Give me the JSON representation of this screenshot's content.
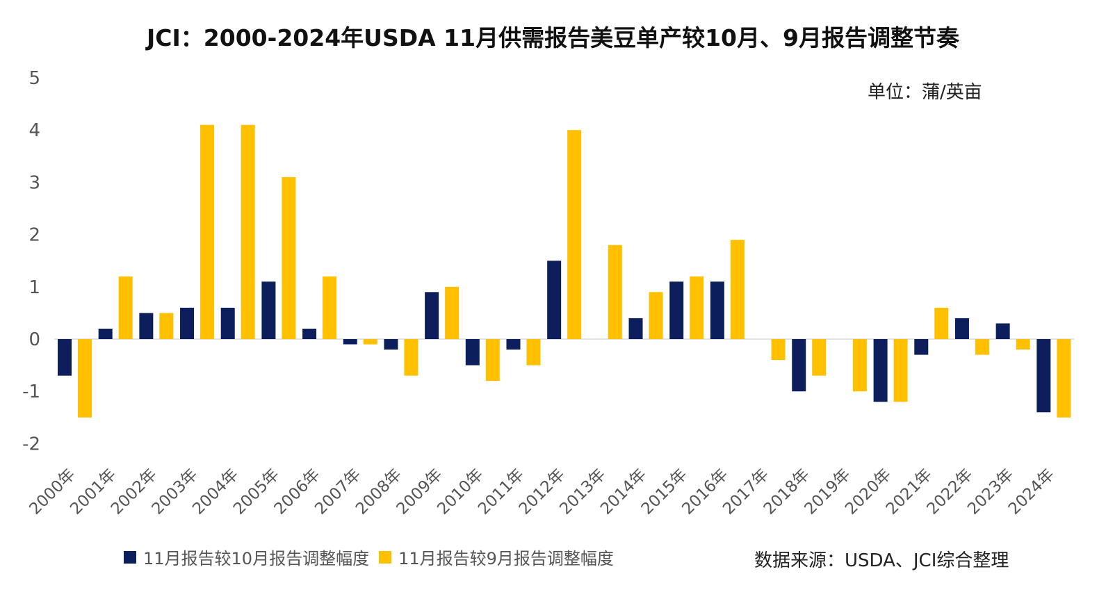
{
  "chart_data": {
    "type": "bar",
    "title": "JCI：2000-2024年USDA 11月供需报告美豆单产较10月、9月报告调整节奏",
    "unit": "单位：蒲/英亩",
    "source": "数据来源：USDA、JCI综合整理",
    "categories": [
      "2000年",
      "2001年",
      "2002年",
      "2003年",
      "2004年",
      "2005年",
      "2006年",
      "2007年",
      "2008年",
      "2009年",
      "2010年",
      "2011年",
      "2012年",
      "2013年",
      "2014年",
      "2015年",
      "2016年",
      "2017年",
      "2018年",
      "2019年",
      "2020年",
      "2021年",
      "2022年",
      "2023年",
      "2024年"
    ],
    "series": [
      {
        "name": "11月报告较10月报告调整幅度",
        "color": "#0c1f5c",
        "values": [
          -0.7,
          0.2,
          0.5,
          0.6,
          0.6,
          1.1,
          0.2,
          -0.1,
          -0.2,
          0.9,
          -0.5,
          -0.2,
          1.5,
          0,
          0.4,
          1.1,
          1.1,
          0,
          -1.0,
          0,
          -1.2,
          -0.3,
          0.4,
          0.3,
          -1.4
        ]
      },
      {
        "name": "11月报告较9月报告调整幅度",
        "color": "#ffc000",
        "values": [
          -1.5,
          1.2,
          0.5,
          4.1,
          4.1,
          3.1,
          1.2,
          -0.1,
          -0.7,
          1.0,
          -0.8,
          -0.5,
          4.0,
          1.8,
          0.9,
          1.2,
          1.9,
          -0.4,
          -0.7,
          -1.0,
          -1.2,
          0.6,
          -0.3,
          -0.2,
          -1.5
        ]
      }
    ],
    "ylim": [
      -2,
      5
    ],
    "yticks": [
      5,
      4,
      3,
      2,
      1,
      0,
      -1,
      -2
    ],
    "legend": "bottom",
    "grid": false
  }
}
